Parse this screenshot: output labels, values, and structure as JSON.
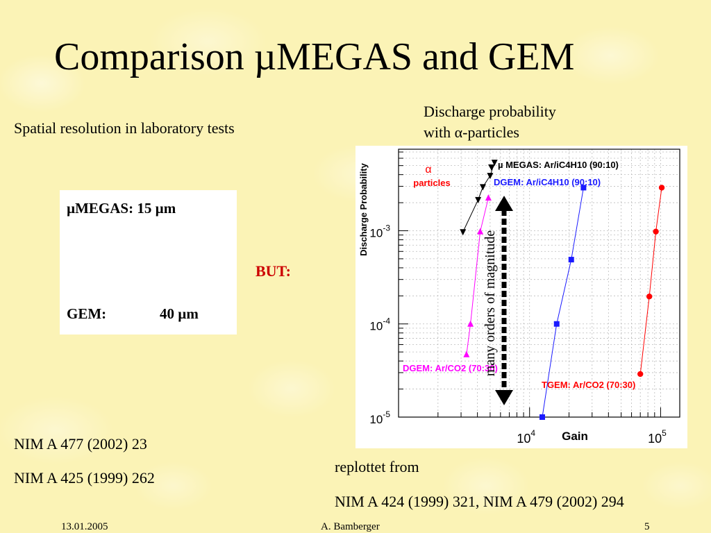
{
  "slide": {
    "title": "Comparison µMEGAS and GEM",
    "spatial_heading": "Spatial resolution in laboratory tests",
    "discharge_heading_line1": "Discharge probability",
    "discharge_heading_line2": "with α-particles",
    "resolution_line1": "µMEGAS: 15 µm",
    "resolution_line2_label": "GEM:",
    "resolution_line2_value": "40 µm",
    "but_label": "BUT:",
    "references_left": [
      "NIM A 477 (2002) 23",
      "NIM A 425 (1999) 262"
    ],
    "replot_label": "replottet from",
    "replot_refs": "NIM A 424 (1999) 321, NIM A 479 (2002) 294",
    "footer": {
      "date": "13.01.2005",
      "author": "A. Bamberger",
      "page": "5"
    },
    "colors": {
      "but": "#cc0000"
    }
  },
  "chart_data": {
    "type": "scatter",
    "xscale": "log",
    "yscale": "log",
    "xlim": [
      1000,
      140000
    ],
    "ylim": [
      1e-05,
      0.0075
    ],
    "ylabel": "Discharge Probability",
    "xlabel": "Gain",
    "x_tick_labels": [
      {
        "value": 10000,
        "base": "10",
        "exp": "4"
      },
      {
        "value": 100000,
        "base": "10",
        "exp": "5"
      }
    ],
    "y_tick_labels": [
      {
        "value": 0.001,
        "base": "10",
        "exp": "-3"
      },
      {
        "value": 0.0001,
        "base": "10",
        "exp": "-4"
      },
      {
        "value": 1e-05,
        "base": "10",
        "exp": "-5"
      }
    ],
    "annotation_alpha_symbol": "α",
    "annotation_alpha_text": "particles",
    "arrow_label": "many orders of magnitude",
    "series": [
      {
        "name": "µ MEGAS: Ar/iC4H10 (90:10)",
        "color": "#000000",
        "marker": "triangle-down",
        "x": [
          3100,
          4050,
          4400,
          5000,
          5400
        ],
        "y": [
          0.00097,
          0.00215,
          0.00295,
          0.0039,
          0.0054
        ]
      },
      {
        "name": "DGEM: Ar/iC4H10 (90:10)",
        "color": "#1a1aff",
        "marker": "square",
        "x": [
          12500,
          16100,
          20800,
          25800
        ],
        "y": [
          1e-05,
          0.0001,
          0.00049,
          0.0029
        ]
      },
      {
        "name": "DGEM: Ar/CO2 (70:30)",
        "color": "#ff00ff",
        "marker": "triangle-up",
        "x": [
          3300,
          3540,
          4200,
          4850
        ],
        "y": [
          4.7e-05,
          0.0001,
          0.00098,
          0.00226
        ]
      },
      {
        "name": "TGEM: Ar/CO2 (70:30)",
        "color": "#ff0000",
        "marker": "circle",
        "x": [
          70000,
          82000,
          92000,
          102000
        ],
        "y": [
          2.9e-05,
          0.000197,
          0.00098,
          0.0029
        ]
      }
    ]
  }
}
